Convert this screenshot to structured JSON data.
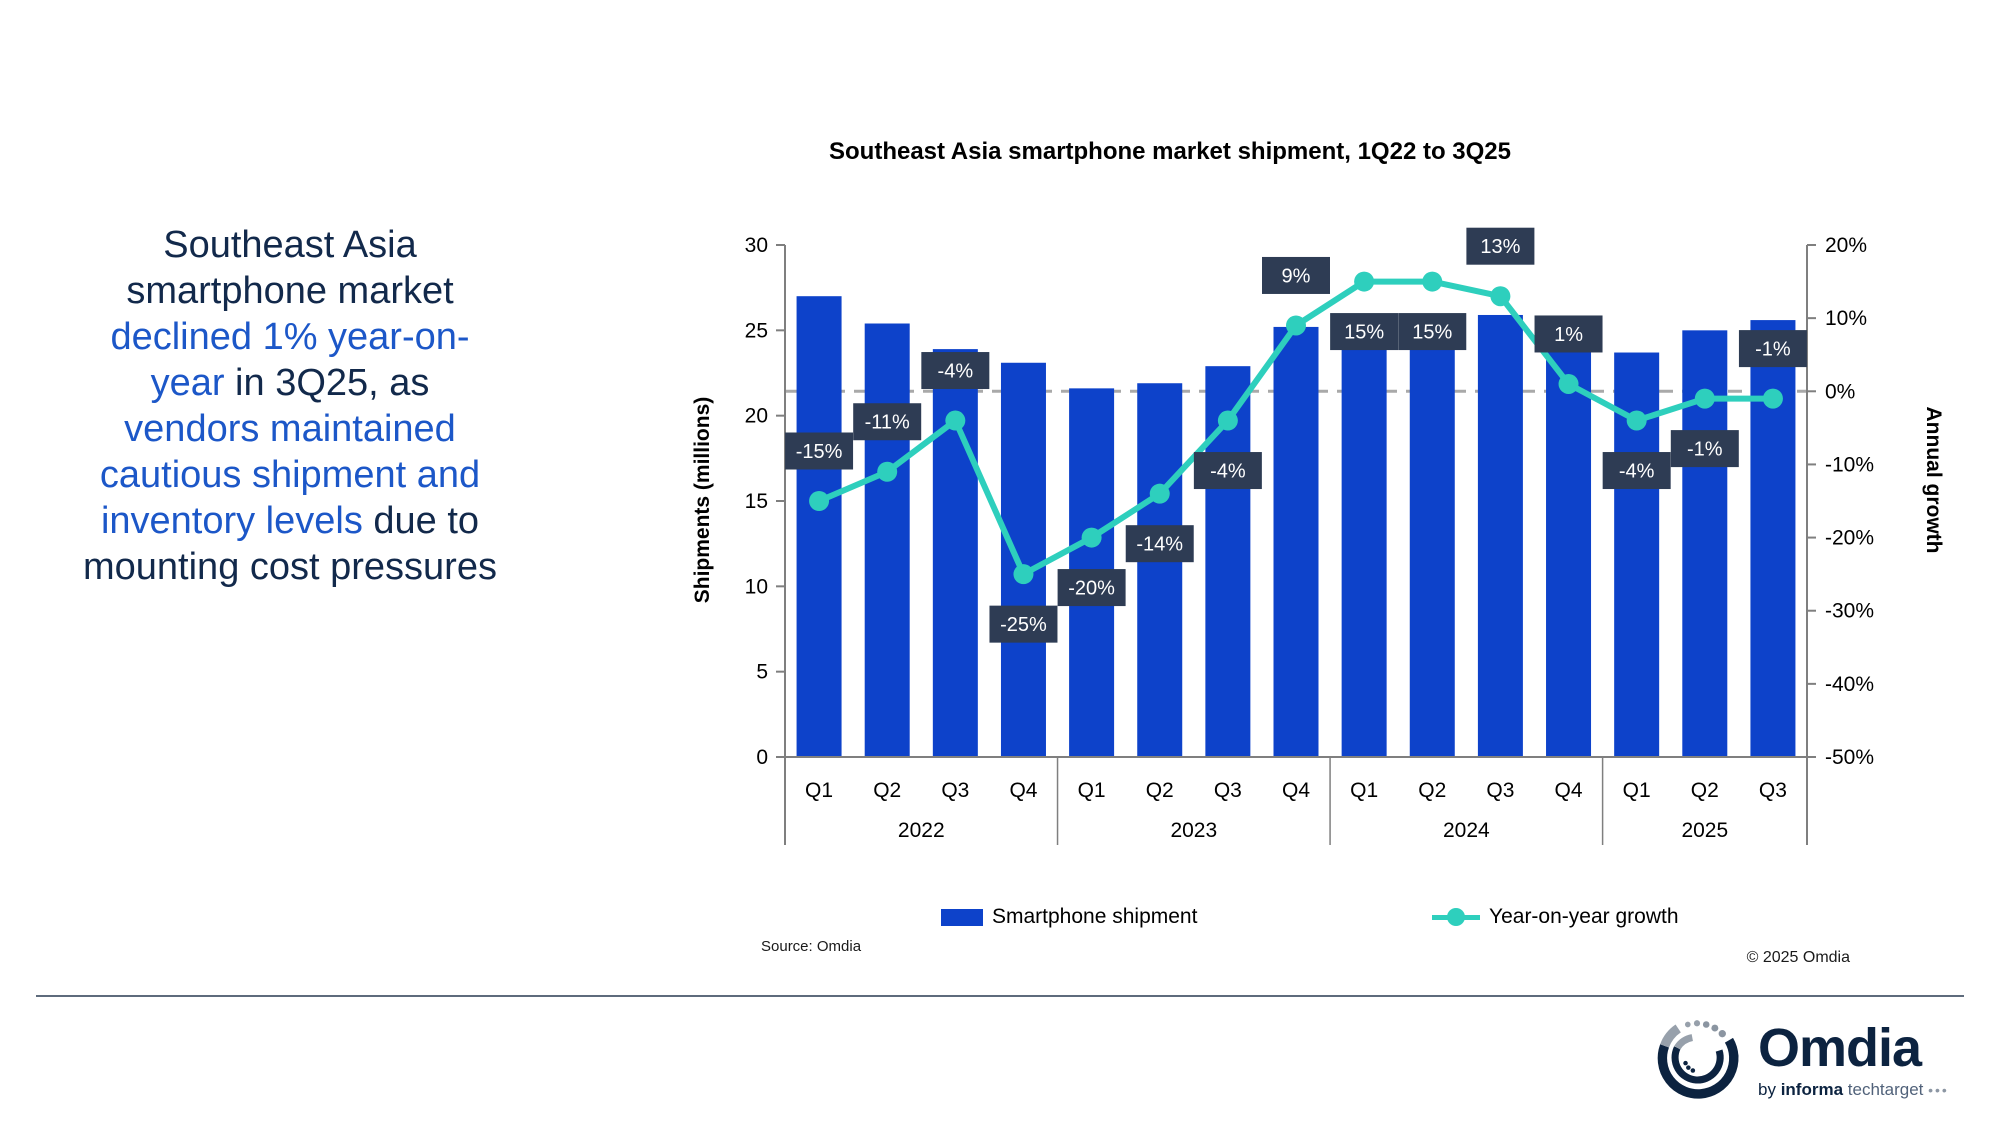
{
  "headline": {
    "colors": {
      "navy": "#12294B",
      "blue": "#1C57C8"
    },
    "lines": [
      [
        {
          "t": "Southeast Asia",
          "c": "navy"
        }
      ],
      [
        {
          "t": "smartphone market",
          "c": "navy"
        }
      ],
      [
        {
          "t": "declined 1% year-on-",
          "c": "blue"
        }
      ],
      [
        {
          "t": "year",
          "c": "blue"
        },
        {
          "t": " in 3Q25, as",
          "c": "navy"
        }
      ],
      [
        {
          "t": "vendors maintained",
          "c": "blue"
        }
      ],
      [
        {
          "t": "cautious shipment and",
          "c": "blue"
        }
      ],
      [
        {
          "t": "inventory levels",
          "c": "blue"
        },
        {
          "t": " due to",
          "c": "navy"
        }
      ],
      [
        {
          "t": "mounting cost pressures",
          "c": "navy"
        }
      ]
    ]
  },
  "chart": {
    "title": "Southeast Asia smartphone market shipment, 1Q22 to 3Q25",
    "left_axis_title": "Shipments (millions)",
    "right_axis_title": "Annual growth",
    "legend": [
      {
        "label": "Smartphone shipment"
      },
      {
        "label": "Year-on-year growth"
      }
    ],
    "source": "Source: Omdia",
    "copyright": "© 2025 Omdia"
  },
  "chart_data": {
    "type": "bar+line",
    "title": "Southeast Asia smartphone market shipment, 1Q22 to 3Q25",
    "categories": [
      "Q1",
      "Q2",
      "Q3",
      "Q4",
      "Q1",
      "Q2",
      "Q3",
      "Q4",
      "Q1",
      "Q2",
      "Q3",
      "Q4",
      "Q1",
      "Q2",
      "Q3"
    ],
    "year_groups": [
      {
        "label": "2022",
        "count": 4
      },
      {
        "label": "2023",
        "count": 4
      },
      {
        "label": "2024",
        "count": 4
      },
      {
        "label": "2025",
        "count": 3
      }
    ],
    "series": [
      {
        "name": "Smartphone shipment",
        "type": "bar",
        "axis": "left",
        "color": "#0D42CA",
        "values": [
          27.0,
          25.4,
          23.9,
          23.1,
          21.6,
          21.9,
          22.9,
          25.2,
          24.8,
          25.2,
          25.9,
          25.5,
          23.7,
          25.0,
          25.6
        ]
      },
      {
        "name": "Year-on-year growth",
        "type": "line",
        "axis": "right",
        "color": "#2ECFBD",
        "values": [
          -15,
          -11,
          -4,
          -25,
          -20,
          -14,
          -4,
          9,
          15,
          15,
          13,
          1,
          -4,
          -1,
          -1
        ],
        "labels": [
          "-15%",
          "-11%",
          "-4%",
          "-25%",
          "-20%",
          "-14%",
          "-4%",
          "9%",
          "15%",
          "15%",
          "13%",
          "1%",
          "-4%",
          "-1%",
          "-1%"
        ],
        "label_pos": [
          "above",
          "above",
          "above",
          "below",
          "below",
          "below",
          "below",
          "above",
          "below",
          "below",
          "above",
          "above",
          "below",
          "below",
          "above"
        ],
        "label_box_color": "#2E3C54"
      }
    ],
    "left_axis": {
      "label": "Shipments (millions)",
      "min": 0,
      "max": 30,
      "ticks": [
        0,
        5,
        10,
        15,
        20,
        25,
        30
      ]
    },
    "right_axis": {
      "label": "Annual growth",
      "min": -50,
      "max": 20,
      "ticks": [
        20,
        10,
        0,
        -10,
        -20,
        -30,
        -40,
        -50
      ],
      "tick_suffix": "%"
    },
    "zero_growth_reference_line": true,
    "legend_position": "bottom"
  },
  "footer": {
    "logo_text": "Omdia",
    "logo_sub_by": "by",
    "logo_sub_informa": "informa",
    "logo_sub_tech": "techtarget",
    "logo_sub_dots": "•••"
  }
}
